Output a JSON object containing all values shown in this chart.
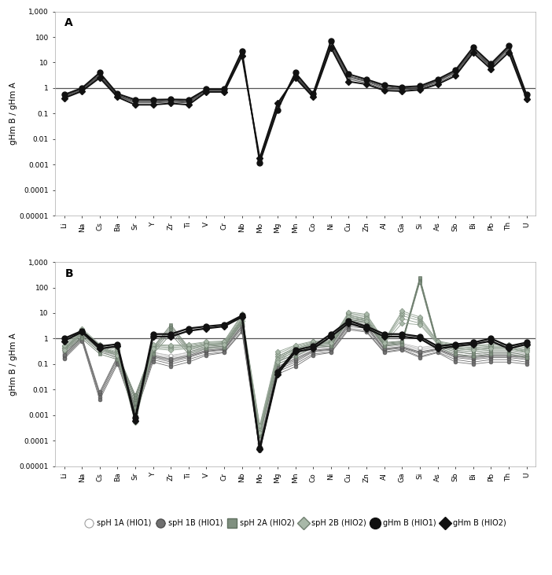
{
  "elements": [
    "Li",
    "Na",
    "Cs",
    "Ba",
    "Sr",
    "Y",
    "Zr",
    "Ti",
    "V",
    "Cr",
    "Nb",
    "Mo",
    "Mg",
    "Mn",
    "Co",
    "Ni",
    "Cu",
    "Zn",
    "Al",
    "Ga",
    "Si",
    "As",
    "Sb",
    "Bi",
    "Pb",
    "Th",
    "U"
  ],
  "ylabel": "gHm B / gHm A",
  "panel_A_label": "A",
  "panel_B_label": "B",
  "panel_A": {
    "s1": [
      0.5,
      0.9,
      3.5,
      0.55,
      0.3,
      0.3,
      0.32,
      0.3,
      0.85,
      0.85,
      25.0,
      0.0014,
      0.18,
      3.5,
      0.55,
      60.0,
      3.0,
      2.0,
      1.2,
      1.0,
      1.1,
      2.0,
      4.5,
      35.0,
      8.0,
      40.0,
      0.5
    ],
    "s2": [
      0.45,
      0.85,
      3.0,
      0.5,
      0.28,
      0.28,
      0.3,
      0.28,
      0.8,
      0.8,
      22.0,
      0.0015,
      0.16,
      3.0,
      0.5,
      50.0,
      2.5,
      1.8,
      1.0,
      0.9,
      1.0,
      1.8,
      4.0,
      30.0,
      7.0,
      35.0,
      0.45
    ],
    "s3": [
      0.42,
      0.8,
      2.8,
      0.48,
      0.26,
      0.26,
      0.28,
      0.26,
      0.75,
      0.75,
      20.0,
      0.0016,
      0.2,
      2.8,
      0.48,
      45.0,
      2.2,
      1.6,
      0.9,
      0.85,
      0.95,
      1.6,
      3.5,
      28.0,
      6.5,
      30.0,
      0.42
    ],
    "s4": [
      0.48,
      0.95,
      3.2,
      0.52,
      0.32,
      0.32,
      0.34,
      0.32,
      0.88,
      0.88,
      23.0,
      0.0013,
      0.22,
      3.2,
      0.52,
      55.0,
      2.8,
      1.9,
      1.1,
      0.95,
      1.05,
      1.9,
      4.2,
      32.0,
      7.5,
      38.0,
      0.48
    ],
    "gHmB_HIO1": [
      0.55,
      1.0,
      4.0,
      0.6,
      0.35,
      0.35,
      0.36,
      0.35,
      0.9,
      0.9,
      28.0,
      0.0012,
      0.14,
      4.0,
      0.6,
      70.0,
      3.5,
      2.2,
      1.3,
      1.1,
      1.2,
      2.2,
      5.0,
      40.0,
      9.0,
      45.0,
      0.55
    ],
    "gHmB_HIO2": [
      0.4,
      0.75,
      2.5,
      0.44,
      0.22,
      0.22,
      0.25,
      0.22,
      0.7,
      0.7,
      18.0,
      0.0018,
      0.25,
      2.5,
      0.44,
      38.0,
      1.8,
      1.4,
      0.8,
      0.75,
      0.85,
      1.4,
      3.0,
      24.0,
      5.5,
      25.0,
      0.38
    ]
  },
  "panel_B": {
    "spH1A": [
      [
        0.35,
        1.5,
        0.4,
        0.25,
        0.005,
        0.3,
        0.2,
        0.3,
        0.45,
        0.5,
        4.0,
        0.00015,
        0.12,
        0.25,
        0.45,
        0.5,
        5.0,
        4.0,
        0.5,
        0.6,
        0.4,
        0.5,
        0.3,
        0.25,
        0.3,
        0.3,
        0.25
      ],
      [
        0.3,
        1.8,
        0.35,
        0.2,
        0.004,
        0.25,
        0.18,
        0.25,
        0.4,
        0.45,
        3.5,
        0.00012,
        0.1,
        0.2,
        0.4,
        0.45,
        4.5,
        3.5,
        0.45,
        0.55,
        0.35,
        0.45,
        0.25,
        0.2,
        0.25,
        0.25,
        0.2
      ],
      [
        0.28,
        1.2,
        0.3,
        0.18,
        0.003,
        0.22,
        0.15,
        0.22,
        0.35,
        0.4,
        3.0,
        0.0001,
        0.08,
        0.18,
        0.35,
        0.4,
        4.0,
        3.0,
        0.4,
        0.5,
        0.3,
        0.4,
        0.22,
        0.18,
        0.22,
        0.22,
        0.18
      ],
      [
        0.32,
        2.0,
        0.45,
        0.22,
        0.006,
        0.28,
        0.22,
        0.28,
        0.42,
        0.48,
        3.8,
        0.00018,
        0.14,
        0.22,
        0.42,
        0.48,
        5.5,
        4.5,
        0.55,
        0.65,
        0.45,
        0.55,
        0.35,
        0.22,
        0.28,
        0.28,
        0.22
      ],
      [
        0.25,
        1.6,
        0.38,
        0.15,
        0.0025,
        0.2,
        0.14,
        0.2,
        0.32,
        0.38,
        2.8,
        8e-05,
        0.07,
        0.16,
        0.32,
        0.38,
        3.5,
        2.8,
        0.38,
        0.45,
        0.28,
        0.38,
        0.2,
        0.16,
        0.2,
        0.2,
        0.16
      ]
    ],
    "spH1B": [
      [
        0.2,
        1.0,
        0.006,
        0.15,
        0.0015,
        0.18,
        0.12,
        0.18,
        0.3,
        0.35,
        2.5,
        6e-05,
        0.06,
        0.12,
        0.3,
        0.35,
        3.0,
        2.5,
        0.35,
        0.42,
        0.25,
        0.35,
        0.18,
        0.15,
        0.18,
        0.18,
        0.15
      ],
      [
        0.18,
        0.9,
        0.005,
        0.12,
        0.0012,
        0.15,
        0.1,
        0.15,
        0.25,
        0.3,
        2.0,
        5e-05,
        0.05,
        0.1,
        0.25,
        0.3,
        2.5,
        2.0,
        0.3,
        0.38,
        0.2,
        0.3,
        0.15,
        0.12,
        0.15,
        0.15,
        0.12
      ],
      [
        0.22,
        1.1,
        0.007,
        0.18,
        0.0018,
        0.2,
        0.14,
        0.2,
        0.32,
        0.38,
        3.0,
        7e-05,
        0.07,
        0.14,
        0.32,
        0.38,
        3.5,
        3.0,
        0.38,
        0.45,
        0.28,
        0.38,
        0.2,
        0.18,
        0.2,
        0.2,
        0.18
      ],
      [
        0.16,
        0.8,
        0.004,
        0.1,
        0.001,
        0.12,
        0.08,
        0.12,
        0.22,
        0.28,
        1.8,
        4e-05,
        0.04,
        0.08,
        0.22,
        0.28,
        2.2,
        1.8,
        0.28,
        0.35,
        0.18,
        0.28,
        0.12,
        0.1,
        0.12,
        0.12,
        0.1
      ],
      [
        0.24,
        1.2,
        0.008,
        0.2,
        0.0022,
        0.22,
        0.16,
        0.22,
        0.35,
        0.4,
        3.2,
        8e-05,
        0.08,
        0.16,
        0.35,
        0.4,
        4.0,
        3.2,
        0.4,
        0.48,
        0.3,
        0.4,
        0.22,
        0.2,
        0.22,
        0.22,
        0.2
      ]
    ],
    "spH2A": [
      [
        0.38,
        1.4,
        0.35,
        0.22,
        0.004,
        0.35,
        2.5,
        0.35,
        0.5,
        0.55,
        5.0,
        0.0002,
        0.15,
        0.3,
        0.55,
        0.6,
        6.0,
        5.0,
        0.6,
        0.7,
        200.0,
        0.55,
        0.35,
        0.3,
        0.35,
        0.35,
        0.28
      ],
      [
        0.35,
        1.2,
        0.3,
        0.18,
        0.003,
        0.3,
        2.0,
        0.3,
        0.45,
        0.5,
        4.5,
        0.00018,
        0.12,
        0.25,
        0.5,
        0.55,
        5.5,
        4.5,
        0.55,
        0.65,
        180.0,
        0.5,
        0.3,
        0.25,
        0.3,
        0.3,
        0.22
      ],
      [
        0.4,
        1.6,
        0.4,
        0.25,
        0.005,
        0.4,
        3.0,
        0.4,
        0.55,
        0.6,
        5.5,
        0.00022,
        0.18,
        0.35,
        0.6,
        0.65,
        7.0,
        5.5,
        0.65,
        0.75,
        220.0,
        0.6,
        0.4,
        0.35,
        0.4,
        0.4,
        0.32
      ],
      [
        0.32,
        1.0,
        0.25,
        0.15,
        0.002,
        0.25,
        1.5,
        0.25,
        0.4,
        0.45,
        4.0,
        0.00015,
        0.1,
        0.2,
        0.45,
        0.5,
        5.0,
        4.0,
        0.5,
        0.6,
        160.0,
        0.45,
        0.25,
        0.2,
        0.25,
        0.25,
        0.18
      ],
      [
        0.42,
        1.8,
        0.45,
        0.28,
        0.006,
        0.45,
        3.5,
        0.45,
        0.6,
        0.65,
        6.0,
        0.00025,
        0.2,
        0.4,
        0.65,
        0.7,
        8.0,
        6.0,
        0.7,
        0.8,
        250.0,
        0.65,
        0.45,
        0.4,
        0.45,
        0.45,
        0.35
      ]
    ],
    "spH2B": [
      [
        0.45,
        2.0,
        0.5,
        0.3,
        0.0008,
        0.5,
        0.45,
        0.5,
        0.65,
        0.7,
        7.0,
        0.0003,
        0.2,
        0.45,
        0.7,
        0.75,
        9.0,
        7.0,
        0.75,
        8.0,
        5.0,
        0.7,
        0.5,
        0.45,
        0.5,
        0.5,
        0.4
      ],
      [
        0.5,
        2.2,
        0.55,
        0.35,
        0.001,
        0.55,
        0.5,
        0.55,
        0.7,
        0.75,
        8.0,
        0.00035,
        0.25,
        0.5,
        0.75,
        0.8,
        10.0,
        8.0,
        0.8,
        10.0,
        6.0,
        0.75,
        0.55,
        0.5,
        0.55,
        0.55,
        0.45
      ],
      [
        0.4,
        1.8,
        0.45,
        0.25,
        0.0006,
        0.45,
        0.4,
        0.45,
        0.6,
        0.65,
        6.0,
        0.00025,
        0.15,
        0.4,
        0.65,
        0.7,
        8.0,
        6.0,
        0.7,
        6.0,
        4.0,
        0.65,
        0.45,
        0.4,
        0.45,
        0.45,
        0.35
      ],
      [
        0.55,
        2.5,
        0.6,
        0.4,
        0.0012,
        0.6,
        0.55,
        0.6,
        0.75,
        0.8,
        9.0,
        0.0004,
        0.3,
        0.55,
        0.8,
        0.85,
        11.0,
        9.0,
        0.85,
        12.0,
        7.0,
        0.8,
        0.6,
        0.55,
        0.6,
        0.6,
        0.5
      ],
      [
        0.35,
        1.6,
        0.4,
        0.22,
        0.0005,
        0.4,
        0.35,
        0.4,
        0.55,
        0.6,
        5.0,
        0.0002,
        0.12,
        0.35,
        0.6,
        0.65,
        7.0,
        5.0,
        0.65,
        4.0,
        3.5,
        0.6,
        0.4,
        0.35,
        0.4,
        0.4,
        0.3
      ]
    ],
    "gHmB_HIO1": [
      1.0,
      2.0,
      0.5,
      0.6,
      0.0008,
      1.5,
      1.5,
      2.5,
      3.0,
      3.5,
      8.0,
      5e-05,
      0.05,
      0.35,
      0.5,
      1.5,
      5.0,
      3.0,
      1.5,
      1.5,
      1.2,
      0.5,
      0.6,
      0.7,
      1.0,
      0.5,
      0.7
    ],
    "gHmB_HIO2": [
      0.8,
      1.8,
      0.4,
      0.5,
      0.0006,
      1.2,
      1.2,
      2.0,
      2.5,
      3.0,
      7.0,
      4.5e-05,
      0.04,
      0.3,
      0.4,
      1.2,
      4.0,
      2.5,
      1.2,
      1.2,
      1.0,
      0.4,
      0.5,
      0.6,
      0.8,
      0.4,
      0.6
    ]
  },
  "colors": {
    "spH1A_line": "#c8c8c8",
    "spH1A_marker_face": "white",
    "spH1A_marker_edge": "#a0a0a0",
    "spH1B_line": "#707070",
    "spH1B_marker_face": "#707070",
    "spH2A_line": "#606060",
    "spH2A_marker_face": "#808080",
    "spH2B_line": "#909090",
    "spH2B_marker_face": "#b0b0b0",
    "spH2B_marker_edge": "#808080",
    "gHm_dark": "#1a1a1a"
  }
}
